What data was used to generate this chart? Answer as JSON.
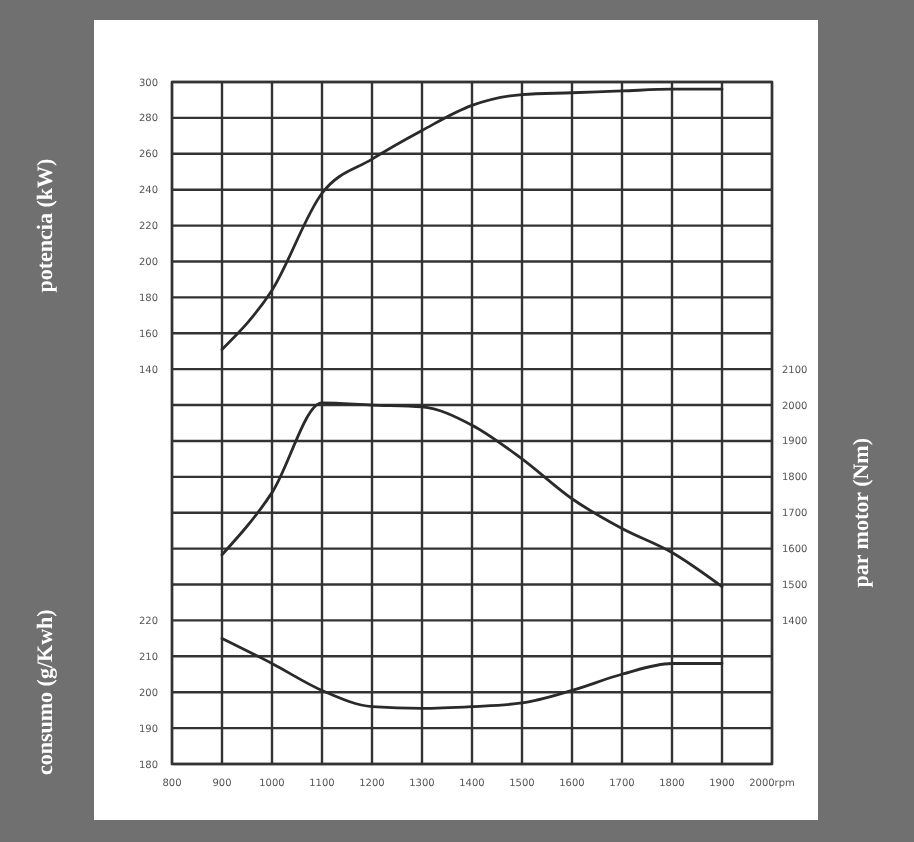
{
  "chart_data": {
    "type": "line",
    "ylabel": "potencia (kW)",
    "y2label": "par motor (Nm)",
    "y3label": "consumo (g/Kwh)",
    "x": [
      900,
      1000,
      1100,
      1200,
      1300,
      1400,
      1500,
      1600,
      1700,
      1800,
      1900
    ],
    "xlim": [
      800,
      2000
    ],
    "xticks": [
      800,
      900,
      1000,
      1100,
      1200,
      1300,
      1400,
      1500,
      1600,
      1700,
      1800,
      1900,
      {
        "value": 2000,
        "label": "2000rpm"
      }
    ],
    "ylim": [
      -80,
      300
    ],
    "yticks": [
      {
        "value": -80,
        "label": null
      },
      {
        "value": -60,
        "label": null
      },
      {
        "value": -40,
        "label": null
      },
      {
        "value": -20,
        "label": null
      },
      {
        "value": 0,
        "label": null
      },
      {
        "value": 20,
        "label": null
      },
      {
        "value": 40,
        "label": null
      },
      {
        "value": 60,
        "label": null
      },
      {
        "value": 80,
        "label": null
      },
      {
        "value": 100,
        "label": null
      },
      {
        "value": 120,
        "label": null
      },
      140,
      160,
      180,
      200,
      220,
      240,
      260,
      280,
      300
    ],
    "y2lim": [
      1000,
      2900
    ],
    "y2ticks": [
      1400,
      1500,
      1600,
      1700,
      1800,
      1900,
      2000,
      2100
    ],
    "y3lim": [
      180,
      370
    ],
    "y3ticks": [
      180,
      190,
      200,
      210,
      220
    ],
    "grid": true,
    "line_style": "solid",
    "series": [
      {
        "color": "#2a2a2a",
        "axis": "y",
        "values": [
          151,
          184,
          238,
          257,
          273,
          287,
          293,
          294,
          295,
          296,
          296
        ]
      },
      {
        "color": "#2a2a2a",
        "axis": "y2",
        "values": [
          1583,
          1756,
          2006,
          2000,
          1995,
          1944,
          1850,
          1739,
          1656,
          1589,
          1494
        ]
      },
      {
        "color": "#2a2a2a",
        "axis": "y3",
        "values": [
          215,
          208,
          200.5,
          196,
          195.5,
          196,
          197,
          200.5,
          205,
          208,
          208
        ]
      }
    ]
  }
}
